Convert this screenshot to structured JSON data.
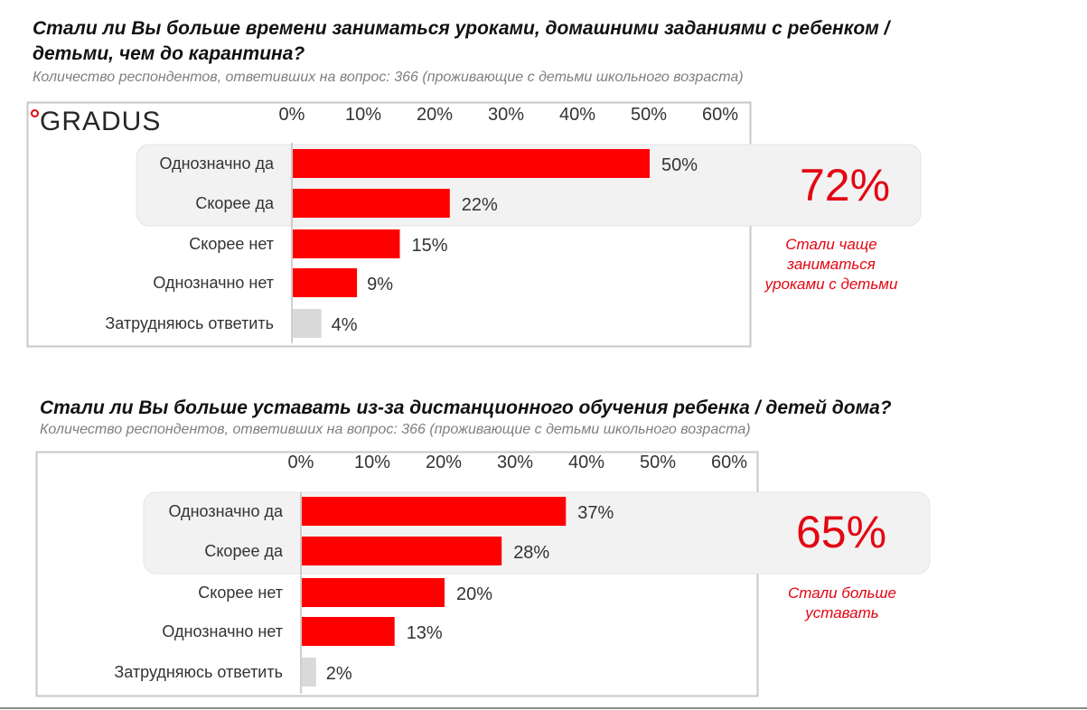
{
  "brand": {
    "logo_text": "GRADUS"
  },
  "colors": {
    "accent": "#e30613",
    "bar_red": "#ff0000",
    "bar_grey": "#d9d9d9"
  },
  "chart_data": [
    {
      "type": "bar",
      "orientation": "horizontal",
      "title": "Стали ли Вы больше времени заниматься уроками, домашними заданиями с ребенком / детьми, чем до карантина?",
      "subtitle": "Количество респондентов, ответивших на вопрос: 366 (проживающие с детьми школьного возраста)",
      "x_ticks": [
        "0%",
        "10%",
        "20%",
        "30%",
        "40%",
        "50%",
        "60%"
      ],
      "xlim": [
        0,
        60
      ],
      "categories": [
        "Однозначно да",
        "Скорее да",
        "Скорее нет",
        "Однозначно нет",
        "Затрудняюсь ответить"
      ],
      "values": [
        50,
        22,
        15,
        9,
        4
      ],
      "value_labels": [
        "50%",
        "22%",
        "15%",
        "9%",
        "4%"
      ],
      "highlight": {
        "value": "72%",
        "note": [
          "Стали чаще",
          "заниматься",
          "уроками с детьми"
        ]
      }
    },
    {
      "type": "bar",
      "orientation": "horizontal",
      "title": "Стали ли Вы больше уставать из-за дистанционного обучения ребенка / детей дома?",
      "subtitle": "Количество респондентов, ответивших на вопрос: 366 (проживающие с детьми школьного возраста)",
      "x_ticks": [
        "0%",
        "10%",
        "20%",
        "30%",
        "40%",
        "50%",
        "60%"
      ],
      "xlim": [
        0,
        60
      ],
      "categories": [
        "Однозначно да",
        "Скорее да",
        "Скорее нет",
        "Однозначно нет",
        "Затрудняюсь ответить"
      ],
      "values": [
        37,
        28,
        20,
        13,
        2
      ],
      "value_labels": [
        "37%",
        "28%",
        "20%",
        "13%",
        "2%"
      ],
      "highlight": {
        "value": "65%",
        "note": [
          "Стали больше",
          "уставать"
        ]
      }
    }
  ]
}
